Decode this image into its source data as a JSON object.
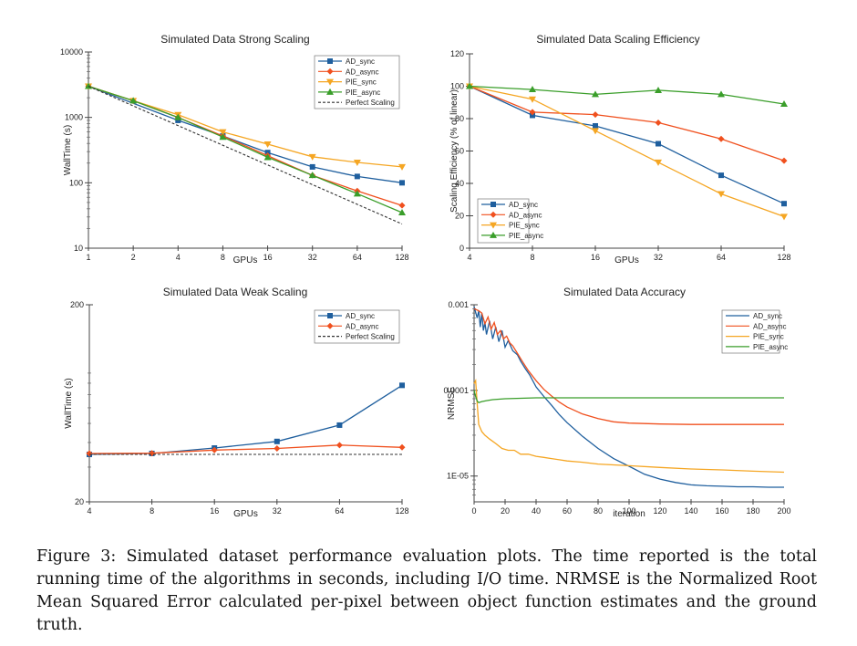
{
  "figure": {
    "caption": "Figure 3: Simulated dataset performance evaluation plots. The time reported is the total running time of the algorithms in seconds, including I/O time. NRMSE is the Normalized Root Mean Squared Error calculated per-pixel between object function estimates and the ground truth."
  },
  "colors": {
    "AD_sync": "#1f5f9e",
    "AD_async": "#f0501e",
    "PIE_sync": "#f5a623",
    "PIE_async": "#3a9e2a",
    "Perfect": "#333333"
  },
  "chart_data": [
    {
      "type": "line",
      "title": "Simulated Data Strong Scaling",
      "xlabel": "GPUs",
      "ylabel": "WallTime (s)",
      "x_scale": "log2",
      "y_scale": "log10",
      "x_ticks": [
        1,
        2,
        4,
        8,
        16,
        32,
        64,
        128
      ],
      "y_ticks": [
        10,
        100,
        1000,
        10000
      ],
      "y_tick_labels": [
        "10",
        "100",
        "1000",
        "10000"
      ],
      "xlim": [
        1,
        128
      ],
      "ylim": [
        10,
        10000
      ],
      "legend_position": "top-right",
      "series": [
        {
          "name": "AD_sync",
          "marker": "square",
          "x": [
            1,
            4,
            8,
            16,
            32,
            64,
            128
          ],
          "y": [
            3000,
            900,
            520,
            290,
            175,
            125,
            100
          ]
        },
        {
          "name": "AD_async",
          "marker": "diamond",
          "x": [
            1,
            2,
            4,
            8,
            16,
            32,
            64,
            128
          ],
          "y": [
            3000,
            1800,
            1000,
            520,
            260,
            130,
            75,
            45
          ]
        },
        {
          "name": "PIE_sync",
          "marker": "triangle-down",
          "x": [
            1,
            2,
            4,
            8,
            16,
            32,
            64,
            128
          ],
          "y": [
            3000,
            1800,
            1100,
            600,
            390,
            250,
            205,
            175
          ]
        },
        {
          "name": "PIE_async",
          "marker": "triangle-up",
          "x": [
            1,
            2,
            4,
            8,
            16,
            32,
            64,
            128
          ],
          "y": [
            3000,
            1800,
            1000,
            500,
            245,
            130,
            68,
            35
          ]
        },
        {
          "name": "Perfect Scaling",
          "marker": "none",
          "dashed": true,
          "x": [
            1,
            128
          ],
          "y": [
            3000,
            23.4
          ]
        }
      ]
    },
    {
      "type": "line",
      "title": "Simulated Data Scaling Efficiency",
      "xlabel": "GPUs",
      "ylabel": "Scaling Efficiency (% of linear)",
      "x_scale": "log2",
      "y_scale": "linear",
      "x_ticks": [
        4,
        8,
        16,
        32,
        64,
        128
      ],
      "y_ticks": [
        0,
        20,
        40,
        60,
        80,
        100,
        120
      ],
      "xlim": [
        4,
        128
      ],
      "ylim": [
        0,
        120
      ],
      "legend_position": "bottom-left",
      "series": [
        {
          "name": "AD_sync",
          "marker": "square",
          "x": [
            4,
            8,
            16,
            32,
            64,
            128
          ],
          "y": [
            100,
            82,
            75.5,
            64.5,
            45,
            27.5
          ]
        },
        {
          "name": "AD_async",
          "marker": "diamond",
          "x": [
            4,
            8,
            16,
            32,
            64,
            128
          ],
          "y": [
            100,
            84,
            82.5,
            77.5,
            67.5,
            54
          ]
        },
        {
          "name": "PIE_sync",
          "marker": "triangle-down",
          "x": [
            4,
            8,
            16,
            32,
            64,
            128
          ],
          "y": [
            100,
            92,
            72.5,
            53,
            33.5,
            19.5
          ]
        },
        {
          "name": "PIE_async",
          "marker": "triangle-up",
          "x": [
            4,
            8,
            16,
            32,
            64,
            128
          ],
          "y": [
            100,
            98,
            95,
            97.5,
            95,
            89
          ]
        }
      ]
    },
    {
      "type": "line",
      "title": "Simulated Data Weak Scaling",
      "xlabel": "GPUs",
      "ylabel": "WallTime (s)",
      "x_scale": "log2",
      "y_scale": "log10",
      "x_ticks": [
        4,
        8,
        16,
        32,
        64,
        128
      ],
      "y_ticks": [
        20,
        200
      ],
      "y_tick_labels": [
        "20",
        "200"
      ],
      "xlim": [
        4,
        128
      ],
      "ylim": [
        20,
        200
      ],
      "legend_position": "top-right",
      "series": [
        {
          "name": "AD_sync",
          "marker": "square",
          "x": [
            4,
            8,
            16,
            32,
            64,
            128
          ],
          "y": [
            34.8,
            35.2,
            37.5,
            40.5,
            49,
            78
          ]
        },
        {
          "name": "AD_async",
          "marker": "diamond",
          "x": [
            4,
            8,
            16,
            32,
            64,
            128
          ],
          "y": [
            35.2,
            35.3,
            36.6,
            37.3,
            38.8,
            37.8
          ]
        },
        {
          "name": "Perfect Scaling",
          "marker": "none",
          "dashed": true,
          "x": [
            4,
            128
          ],
          "y": [
            34.8,
            34.8
          ]
        }
      ]
    },
    {
      "type": "line",
      "title": "Simulated Data Accuracy",
      "xlabel": "iteration",
      "ylabel": "NRMSE",
      "x_scale": "linear",
      "y_scale": "log10",
      "x_ticks": [
        0,
        20,
        40,
        60,
        80,
        100,
        120,
        140,
        160,
        180,
        200
      ],
      "y_ticks": [
        1e-05,
        0.0001,
        0.001
      ],
      "y_tick_labels": [
        "1E-05",
        "0.0001",
        "0.001"
      ],
      "xlim": [
        0,
        200
      ],
      "ylim": [
        5e-06,
        0.001
      ],
      "legend_position": "top-right",
      "series": [
        {
          "name": "AD_sync",
          "x": [
            0,
            2,
            3,
            4,
            5,
            6,
            7,
            8,
            10,
            12,
            14,
            16,
            18,
            20,
            22,
            25,
            28,
            30,
            33,
            36,
            40,
            45,
            50,
            55,
            60,
            70,
            80,
            90,
            100,
            110,
            120,
            130,
            140,
            150,
            160,
            170,
            180,
            190,
            200
          ],
          "y": [
            0.00095,
            0.0007,
            0.00085,
            0.00055,
            0.0008,
            0.0005,
            0.00062,
            0.00045,
            0.00065,
            0.0004,
            0.00055,
            0.00037,
            0.0005,
            0.00032,
            0.00038,
            0.00029,
            0.00026,
            0.00022,
            0.00018,
            0.00015,
            0.00011,
            8.5e-05,
            6.7e-05,
            5.2e-05,
            4.2e-05,
            2.9e-05,
            2.1e-05,
            1.6e-05,
            1.3e-05,
            1.05e-05,
            9.2e-06,
            8.4e-06,
            7.9e-06,
            7.7e-06,
            7.6e-06,
            7.5e-06,
            7.5e-06,
            7.4e-06,
            7.4e-06
          ]
        },
        {
          "name": "AD_async",
          "x": [
            0,
            3,
            5,
            7,
            9,
            11,
            13,
            15,
            17,
            19,
            21,
            23,
            25,
            28,
            31,
            35,
            40,
            45,
            50,
            55,
            60,
            70,
            80,
            90,
            100,
            110,
            120,
            140,
            160,
            180,
            200
          ],
          "y": [
            0.0009,
            0.00085,
            0.0008,
            0.0006,
            0.00072,
            0.00052,
            0.00062,
            0.00045,
            0.0005,
            0.0004,
            0.00043,
            0.00036,
            0.00033,
            0.00027,
            0.00022,
            0.00017,
            0.00013,
            0.000103,
            8.6e-05,
            7.3e-05,
            6.4e-05,
            5.3e-05,
            4.7e-05,
            4.3e-05,
            4.15e-05,
            4.1e-05,
            4.05e-05,
            4e-05,
            4e-05,
            4e-05,
            4e-05
          ]
        },
        {
          "name": "PIE_sync",
          "x": [
            0,
            1,
            2,
            3,
            5,
            7,
            10,
            14,
            18,
            22,
            26,
            30,
            35,
            40,
            45,
            50,
            55,
            60,
            70,
            80,
            90,
            100,
            120,
            140,
            160,
            180,
            200
          ],
          "y": [
            0.00012,
            0.00013,
            7e-05,
            4e-05,
            3.3e-05,
            3e-05,
            2.7e-05,
            2.4e-05,
            2.1e-05,
            2e-05,
            2e-05,
            1.8e-05,
            1.8e-05,
            1.7e-05,
            1.65e-05,
            1.6e-05,
            1.55e-05,
            1.5e-05,
            1.45e-05,
            1.38e-05,
            1.35e-05,
            1.32e-05,
            1.26e-05,
            1.21e-05,
            1.18e-05,
            1.14e-05,
            1.11e-05
          ]
        },
        {
          "name": "PIE_async",
          "x": [
            0,
            1,
            2,
            3,
            5,
            8,
            12,
            20,
            30,
            40,
            60,
            80,
            100,
            120,
            140,
            160,
            180,
            200
          ],
          "y": [
            0.0001,
            8.5e-05,
            7.5e-05,
            7.2e-05,
            7.4e-05,
            7.6e-05,
            7.8e-05,
            8e-05,
            8.1e-05,
            8.2e-05,
            8.2e-05,
            8.2e-05,
            8.2e-05,
            8.2e-05,
            8.2e-05,
            8.2e-05,
            8.2e-05,
            8.2e-05
          ]
        }
      ]
    }
  ]
}
